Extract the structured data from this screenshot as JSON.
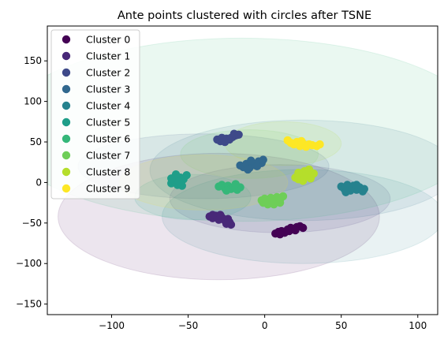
{
  "chart_data": {
    "type": "scatter",
    "title": "Ante points clustered with circles after TSNE",
    "xlabel": "",
    "ylabel": "",
    "xlim": [
      -142,
      113
    ],
    "ylim": [
      -163,
      193
    ],
    "xticks": [
      -100,
      -50,
      0,
      50,
      100
    ],
    "yticks": [
      -150,
      -100,
      -50,
      0,
      50,
      100,
      150
    ],
    "grid": false,
    "legend_position": "top-left",
    "series": [
      {
        "name": "Cluster 0",
        "color": "#440154",
        "points": [
          [
            7,
            -63
          ],
          [
            9,
            -61
          ],
          [
            11,
            -60
          ],
          [
            13,
            -62
          ],
          [
            15,
            -58
          ],
          [
            17,
            -56
          ],
          [
            19,
            -57
          ],
          [
            21,
            -55
          ],
          [
            23,
            -54
          ],
          [
            25,
            -56
          ],
          [
            16,
            -60
          ],
          [
            20,
            -59
          ],
          [
            10,
            -64
          ]
        ],
        "circle": {
          "cx": -30,
          "cy": -42,
          "rx": 105,
          "ry": 78,
          "color": "#440154"
        }
      },
      {
        "name": "Cluster 1",
        "color": "#482878",
        "points": [
          [
            -36,
            -42
          ],
          [
            -34,
            -44
          ],
          [
            -32,
            -41
          ],
          [
            -30,
            -46
          ],
          [
            -28,
            -43
          ],
          [
            -26,
            -47
          ],
          [
            -24,
            -45
          ],
          [
            -23,
            -49
          ],
          [
            -25,
            -51
          ],
          [
            -22,
            -52
          ],
          [
            -34,
            -40
          ],
          [
            -29,
            -40
          ]
        ],
        "circle": {
          "cx": 10,
          "cy": -20,
          "rx": 72,
          "ry": 42,
          "color": "#482878"
        }
      },
      {
        "name": "Cluster 2",
        "color": "#3e4989",
        "points": [
          [
            -31,
            53
          ],
          [
            -29,
            51
          ],
          [
            -27,
            52
          ],
          [
            -25,
            54
          ],
          [
            -23,
            53
          ],
          [
            -21,
            56
          ],
          [
            -19,
            58
          ],
          [
            -17,
            59
          ],
          [
            -22,
            55
          ],
          [
            -26,
            50
          ],
          [
            -20,
            60
          ],
          [
            -28,
            55
          ]
        ],
        "circle": {
          "cx": -40,
          "cy": 20,
          "rx": 82,
          "ry": 40,
          "color": "#3e4989"
        }
      },
      {
        "name": "Cluster 3",
        "color": "#31688e",
        "points": [
          [
            -16,
            21
          ],
          [
            -14,
            19
          ],
          [
            -12,
            23
          ],
          [
            -10,
            18
          ],
          [
            -8,
            24
          ],
          [
            -6,
            21
          ],
          [
            -4,
            26
          ],
          [
            -2,
            24
          ],
          [
            -5,
            20
          ],
          [
            -9,
            27
          ],
          [
            -1,
            28
          ],
          [
            -11,
            16
          ]
        ],
        "circle": {
          "cx": 25,
          "cy": 15,
          "rx": 100,
          "ry": 62,
          "color": "#31688e"
        }
      },
      {
        "name": "Cluster 4",
        "color": "#26828e",
        "points": [
          [
            50,
            -5
          ],
          [
            52,
            -8
          ],
          [
            54,
            -3
          ],
          [
            56,
            -7
          ],
          [
            58,
            -4
          ],
          [
            60,
            -9
          ],
          [
            62,
            -6
          ],
          [
            64,
            -11
          ],
          [
            56,
            -10
          ],
          [
            60,
            -3
          ],
          [
            65,
            -8
          ],
          [
            53,
            -12
          ]
        ],
        "circle": {
          "cx": 25,
          "cy": -42,
          "rx": 92,
          "ry": 58,
          "color": "#26828e"
        }
      },
      {
        "name": "Cluster 5",
        "color": "#1f9e89",
        "points": [
          [
            -61,
            -1
          ],
          [
            -59,
            2
          ],
          [
            -57,
            -3
          ],
          [
            -55,
            6
          ],
          [
            -53,
            4
          ],
          [
            -51,
            9
          ],
          [
            -58,
            10
          ],
          [
            -61,
            5
          ],
          [
            -54,
            -4
          ],
          [
            -56,
            1
          ]
        ],
        "circle": {
          "cx": -47,
          "cy": -18,
          "rx": 38,
          "ry": 28,
          "color": "#1f9e89"
        }
      },
      {
        "name": "Cluster 6",
        "color": "#35b779",
        "points": [
          [
            -30,
            -5
          ],
          [
            -28,
            -3
          ],
          [
            -26,
            -7
          ],
          [
            -24,
            -4
          ],
          [
            -22,
            -8
          ],
          [
            -20,
            -5
          ],
          [
            -18,
            -9
          ],
          [
            -16,
            -6
          ],
          [
            -25,
            -10
          ],
          [
            -19,
            -2
          ]
        ],
        "circle": {
          "cx": -15,
          "cy": 65,
          "rx": 158,
          "ry": 113,
          "color": "#35b779"
        }
      },
      {
        "name": "Cluster 7",
        "color": "#6ece58",
        "points": [
          [
            -2,
            -22
          ],
          [
            0,
            -20
          ],
          [
            2,
            -24
          ],
          [
            4,
            -19
          ],
          [
            6,
            -23
          ],
          [
            8,
            -18
          ],
          [
            10,
            -21
          ],
          [
            12,
            -17
          ],
          [
            6,
            -27
          ],
          [
            2,
            -27
          ],
          [
            -1,
            -25
          ],
          [
            10,
            -25
          ]
        ],
        "circle": {
          "cx": -10,
          "cy": 35,
          "rx": 45,
          "ry": 30,
          "color": "#6ece58"
        }
      },
      {
        "name": "Cluster 8",
        "color": "#b5de2b",
        "points": [
          [
            20,
            6
          ],
          [
            22,
            4
          ],
          [
            24,
            10
          ],
          [
            26,
            14
          ],
          [
            28,
            8
          ],
          [
            30,
            5
          ],
          [
            32,
            11
          ],
          [
            25,
            2
          ],
          [
            29,
            16
          ],
          [
            22,
            12
          ]
        ],
        "circle": {
          "cx": 12,
          "cy": 48,
          "rx": 38,
          "ry": 27,
          "color": "#b5de2b"
        }
      },
      {
        "name": "Cluster 9",
        "color": "#fde725",
        "points": [
          [
            15,
            52
          ],
          [
            17,
            49
          ],
          [
            19,
            47
          ],
          [
            21,
            50
          ],
          [
            23,
            45
          ],
          [
            25,
            48
          ],
          [
            27,
            44
          ],
          [
            29,
            47
          ],
          [
            31,
            46
          ],
          [
            34,
            45
          ],
          [
            36,
            47
          ],
          [
            24,
            51
          ]
        ],
        "circle": {
          "cx": -40,
          "cy": 0,
          "rx": 55,
          "ry": 34,
          "color": "#fde725"
        }
      }
    ]
  }
}
